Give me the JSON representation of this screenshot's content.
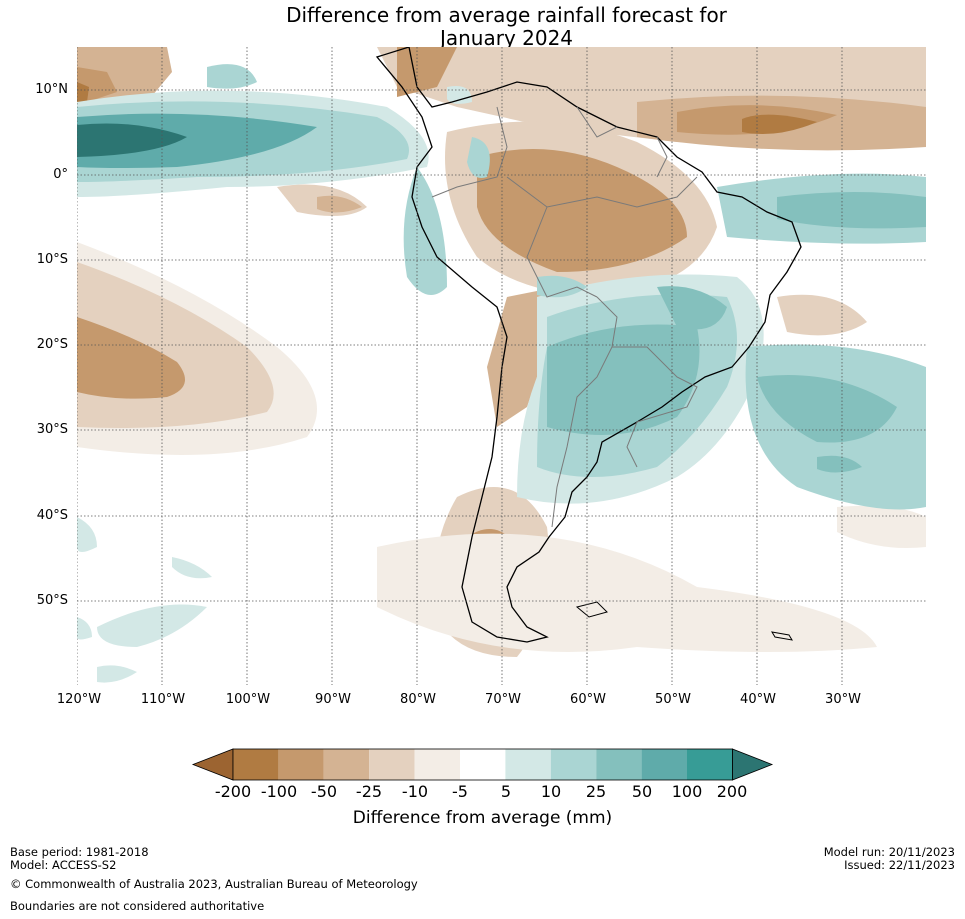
{
  "title": {
    "line1": "Difference from average rainfall forecast for",
    "line2": "January 2024"
  },
  "map": {
    "region": "South America",
    "lat_labels": [
      "10°N",
      "0°",
      "10°S",
      "20°S",
      "30°S",
      "40°S",
      "50°S"
    ],
    "lon_labels": [
      "120°W",
      "110°W",
      "100°W",
      "90°W",
      "80°W",
      "70°W",
      "60°W",
      "50°W",
      "40°W",
      "30°W"
    ]
  },
  "colorbar": {
    "ticks": [
      "-200",
      "-100",
      "-50",
      "-25",
      "-10",
      "-5",
      "5",
      "10",
      "25",
      "50",
      "100",
      "200"
    ],
    "colors": [
      "#9c6431",
      "#b07b42",
      "#c5996d",
      "#d4b393",
      "#e4d1bf",
      "#f3ede6",
      "#ffffff",
      "#d3e8e6",
      "#aad5d3",
      "#84c0bd",
      "#5fabaa",
      "#379c96",
      "#2c7572"
    ],
    "label": "Difference from average (mm)"
  },
  "footer": {
    "base_period": "Base period: 1981-2018",
    "model": "Model: ACCESS-S2",
    "model_run": "Model run: 20/11/2023",
    "issued": "Issued: 22/11/2023",
    "copyright": "© Commonwealth of Australia 2023, Australian Bureau of Meteorology",
    "boundaries": "Boundaries are not considered authoritative"
  }
}
